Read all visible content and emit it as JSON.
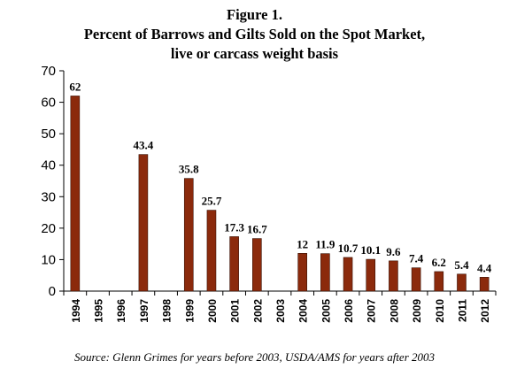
{
  "chart_data": {
    "type": "bar",
    "title": "Figure 1.",
    "subtitle_lines": [
      "Percent of Barrows and Gilts Sold on the Spot Market,",
      "live or carcass weight basis"
    ],
    "xlabel": "",
    "ylabel": "",
    "ylim": [
      0,
      70
    ],
    "yticks": [
      0,
      10,
      20,
      30,
      40,
      50,
      60,
      70
    ],
    "grid": false,
    "legend": "none",
    "bar_color": "#8B2A0C",
    "categories": [
      "1994",
      "1995",
      "1996",
      "1997",
      "1998",
      "1999",
      "2000",
      "2001",
      "2002",
      "2003",
      "2004",
      "2005",
      "2006",
      "2007",
      "2008",
      "2009",
      "2010",
      "2011",
      "2012"
    ],
    "values": [
      62,
      null,
      null,
      43.4,
      null,
      35.8,
      25.7,
      17.3,
      16.7,
      null,
      12,
      11.9,
      10.7,
      10.1,
      9.6,
      7.4,
      6.2,
      5.4,
      4.4
    ],
    "data_labels": [
      "62",
      "",
      "",
      "43.4",
      "",
      "35.8",
      "25.7",
      "17.3",
      "16.7",
      "",
      "12",
      "11.9",
      "10.7",
      "10.1",
      "9.6",
      "7.4",
      "6.2",
      "5.4",
      "4.4"
    ],
    "source": "Source: Glenn Grimes for years before 2003, USDA/AMS for years after 2003"
  }
}
